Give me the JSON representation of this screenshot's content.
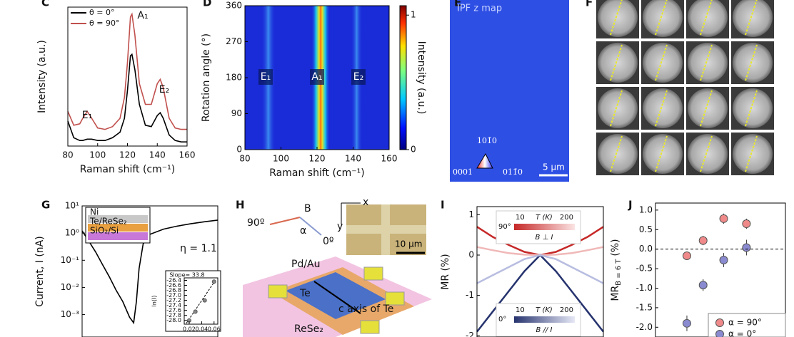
{
  "panel_labels": [
    "C",
    "D",
    "E",
    "F",
    "G",
    "H",
    "I",
    "J"
  ],
  "chart_data": [
    {
      "type": "line",
      "ylabel": "Intensity (a.u.)",
      "xlabel": "Raman shift (cm⁻¹)",
      "x": [
        80,
        84,
        88,
        90,
        93,
        96,
        100,
        105,
        110,
        115,
        118,
        120,
        122,
        123,
        125,
        128,
        132,
        136,
        140,
        142,
        144,
        148,
        152,
        156,
        160
      ],
      "xlim": [
        80,
        160
      ],
      "xticks": [
        80,
        100,
        120,
        140,
        160
      ],
      "ylim": [
        0,
        1
      ],
      "legend": "upper left",
      "series": [
        {
          "name": "θ = 0°",
          "color": "#000000",
          "values": [
            0.18,
            0.06,
            0.04,
            0.04,
            0.05,
            0.05,
            0.04,
            0.04,
            0.06,
            0.1,
            0.2,
            0.4,
            0.65,
            0.66,
            0.55,
            0.3,
            0.15,
            0.14,
            0.22,
            0.24,
            0.2,
            0.08,
            0.04,
            0.03,
            0.03
          ]
        },
        {
          "name": "θ = 90°",
          "color": "#c0504d",
          "values": [
            0.25,
            0.15,
            0.16,
            0.2,
            0.25,
            0.2,
            0.13,
            0.12,
            0.14,
            0.2,
            0.35,
            0.6,
            0.93,
            0.95,
            0.8,
            0.45,
            0.3,
            0.3,
            0.45,
            0.48,
            0.42,
            0.2,
            0.13,
            0.12,
            0.12
          ]
        }
      ],
      "annotations": [
        "E₁",
        "A₁",
        "E₂"
      ]
    },
    {
      "type": "heatmap",
      "ylabel": "Rotation angle (°)",
      "xlabel": "Raman shift (cm⁻¹)",
      "xlim": [
        80,
        160
      ],
      "xticks": [
        80,
        100,
        120,
        140,
        160
      ],
      "ylim": [
        0,
        360
      ],
      "yticks": [
        0,
        90,
        180,
        270,
        360
      ],
      "colorbar_label": "Intensity (a.u.)",
      "clim": [
        0,
        1.07
      ],
      "cticks": [
        0,
        1
      ],
      "annotations": [
        "E₁",
        "A₁",
        "E₂"
      ]
    },
    {
      "type": "line",
      "log_y": true,
      "ylabel": "Current, I (nA)",
      "xlim": [
        0,
        1
      ],
      "x": [
        0,
        0.05,
        0.1,
        0.15,
        0.2,
        0.25,
        0.3,
        0.35,
        0.38,
        0.4,
        0.42,
        0.45,
        0.5,
        0.6,
        0.7,
        0.8,
        0.9,
        1.0
      ],
      "ylim": [
        0.00015,
        10
      ],
      "yticks": [
        {
          "value": 10,
          "label": "10¹"
        },
        {
          "value": 1,
          "label": "10⁰"
        },
        {
          "value": 0.1,
          "label": "10⁻¹"
        },
        {
          "value": 0.01,
          "label": "10⁻²"
        },
        {
          "value": 0.001,
          "label": "10⁻³"
        }
      ],
      "series": [
        {
          "color": "#000000",
          "values": [
            1.2,
            0.5,
            0.2,
            0.07,
            0.025,
            0.008,
            0.003,
            0.0008,
            0.0005,
            0.003,
            0.05,
            0.4,
            0.9,
            1.4,
            1.8,
            2.2,
            2.6,
            3.0
          ]
        }
      ],
      "layers": [
        "Ni",
        "Te/ReSe₂",
        "SiO₂/Si"
      ],
      "annotations": [
        "η = 1.1"
      ]
    },
    {
      "type": "scatter",
      "ylabel": "ln(I)",
      "xlim": [
        0.012,
        0.066
      ],
      "xticks": [
        0.02,
        0.04,
        0.06
      ],
      "x": [
        0.02,
        0.03,
        0.045,
        0.06
      ],
      "ylim": [
        -28.15,
        -26.3
      ],
      "yticks": [
        -26.4,
        -26.6,
        -26.8,
        {
          "value": -27,
          "label": "-27.0"
        },
        -27.2,
        -27.4,
        -27.6,
        -27.8,
        {
          "value": -28,
          "label": "-28.0"
        }
      ],
      "series": [
        {
          "color": "#888888",
          "values": [
            -28.0,
            -27.65,
            -27.2,
            -26.45
          ]
        }
      ],
      "annotations": [
        "Slope= 33.8"
      ]
    },
    {
      "type": "line",
      "ylabel": "MR (%)",
      "x": [
        -1,
        -0.75,
        -0.5,
        -0.25,
        0,
        0.25,
        0.5,
        0.75,
        1
      ],
      "xlim": [
        -1,
        1
      ],
      "ylim": [
        -2.03,
        1.2
      ],
      "yticks": [
        1,
        0,
        -1,
        -2
      ],
      "series": [
        {
          "color": "#c62828",
          "values": [
            0.7,
            0.45,
            0.25,
            0.08,
            0,
            0.08,
            0.25,
            0.45,
            0.7
          ]
        },
        {
          "color": "#f0b8b8",
          "values": [
            0.2,
            0.12,
            0.05,
            0.01,
            0,
            0.01,
            0.05,
            0.12,
            0.2
          ]
        },
        {
          "color": "#26336e",
          "values": [
            -1.9,
            -1.4,
            -0.9,
            -0.4,
            0,
            -0.4,
            -0.9,
            -1.4,
            -1.9
          ]
        },
        {
          "color": "#b8bde0",
          "values": [
            -0.7,
            -0.5,
            -0.3,
            -0.1,
            0,
            -0.1,
            -0.3,
            -0.5,
            -0.7
          ]
        }
      ],
      "colorbars": [
        {
          "angle": "90°",
          "tlim": [
            10,
            200
          ],
          "unit": "T (K)",
          "label": "B ⊥ I",
          "color": "#c62828"
        },
        {
          "angle": "0°",
          "tlim": [
            10,
            200
          ],
          "unit": "T (K)",
          "label": "B // I",
          "color": "#26336e"
        }
      ]
    },
    {
      "type": "scatter",
      "ylabel": "MR",
      "ylabel_sub": "B = 6 T",
      "ylabel_tail": "(%)",
      "x": [
        1.45,
        2.2,
        3.15,
        4.2
      ],
      "xlim": [
        0,
        6
      ],
      "ylim": [
        -2.25,
        1.18
      ],
      "yticks": [
        {
          "value": 1,
          "label": "1.0"
        },
        0.5,
        {
          "value": 0,
          "label": "0.0"
        },
        -0.5,
        {
          "value": -1,
          "label": "-1.0"
        },
        -1.5,
        {
          "value": -2,
          "label": "-2.0"
        }
      ],
      "series": [
        {
          "name": "α = 90°",
          "color": "#f08a8a",
          "values": [
            -0.17,
            0.22,
            0.78,
            0.65
          ],
          "errors": [
            0.1,
            0.12,
            0.13,
            0.13
          ]
        },
        {
          "name": "α = 0°",
          "color": "#8a8ad0",
          "values": [
            -1.9,
            -0.92,
            -0.28,
            0.04
          ],
          "errors": [
            0.2,
            0.15,
            0.18,
            0.2
          ]
        }
      ]
    }
  ],
  "panel_E": {
    "title": "IPF z map",
    "poles": [
      "101̄0",
      "0001",
      "011̄0"
    ],
    "scale_bar": "5 μm"
  },
  "panel_H": {
    "labels": [
      "B",
      "90º",
      "α",
      "0º",
      "x",
      "y",
      "10 μm",
      "Pd/Au",
      "Te",
      "c axis of Te",
      "ReSe₂"
    ]
  }
}
